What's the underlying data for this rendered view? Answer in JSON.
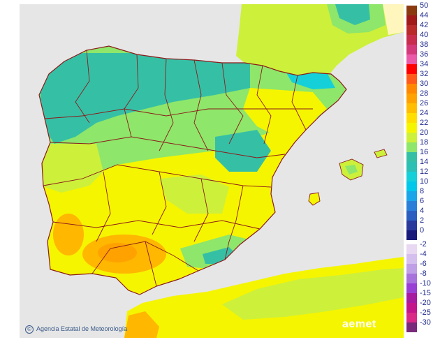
{
  "map": {
    "credit": "Agencia Estatal de Meteorología",
    "credit_symbol": "©",
    "brand": "aemet",
    "colors": {
      "sea": "#e6e6e6",
      "border": "#8b1a1a",
      "yellow": "#f5f500",
      "green_yellow": "#cdf03a",
      "light_green": "#8ee66a",
      "teal": "#35c0a6",
      "orange": "#ffb700",
      "pale_yellow": "#fff6bd"
    }
  },
  "legend": {
    "warm": [
      {
        "label": "50",
        "color": "#8b3a0f"
      },
      {
        "label": "44",
        "color": "#a01a1a"
      },
      {
        "label": "42",
        "color": "#b92b2b"
      },
      {
        "label": "40",
        "color": "#c92d4e"
      },
      {
        "label": "38",
        "color": "#d43a7a"
      },
      {
        "label": "36",
        "color": "#ea5aa8"
      },
      {
        "label": "34",
        "color": "#ff0000"
      },
      {
        "label": "32",
        "color": "#ff5a1a"
      },
      {
        "label": "30",
        "color": "#ff8800"
      },
      {
        "label": "28",
        "color": "#ffa200"
      },
      {
        "label": "26",
        "color": "#ffbe00"
      },
      {
        "label": "24",
        "color": "#ffde00"
      },
      {
        "label": "22",
        "color": "#f5f500"
      },
      {
        "label": "20",
        "color": "#cdf03a"
      },
      {
        "label": "18",
        "color": "#8ee66a"
      },
      {
        "label": "16",
        "color": "#35c0a6"
      },
      {
        "label": "14",
        "color": "#2cc0b5"
      },
      {
        "label": "12",
        "color": "#15d0d8"
      },
      {
        "label": "10",
        "color": "#00c8ea"
      },
      {
        "label": "8",
        "color": "#1aa6e8"
      },
      {
        "label": "6",
        "color": "#2a80d8"
      },
      {
        "label": "4",
        "color": "#2a5fbf"
      },
      {
        "label": "2",
        "color": "#2a3a9c"
      },
      {
        "label": "0",
        "color": "#1a1a7a"
      }
    ],
    "cold": [
      {
        "label": "-2",
        "color": "#e8d8f2"
      },
      {
        "label": "-4",
        "color": "#d4bfee"
      },
      {
        "label": "-6",
        "color": "#bf9fe6"
      },
      {
        "label": "-8",
        "color": "#a872dc"
      },
      {
        "label": "-10",
        "color": "#9a3fd6"
      },
      {
        "label": "-15",
        "color": "#a81aa0"
      },
      {
        "label": "-20",
        "color": "#c4168a"
      },
      {
        "label": "-25",
        "color": "#d82a86"
      },
      {
        "label": "-30",
        "color": "#7a2a7a"
      }
    ]
  }
}
